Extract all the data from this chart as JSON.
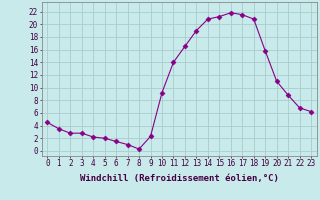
{
  "x": [
    0,
    1,
    2,
    3,
    4,
    5,
    6,
    7,
    8,
    9,
    10,
    11,
    12,
    13,
    14,
    15,
    16,
    17,
    18,
    19,
    20,
    21,
    22,
    23
  ],
  "y": [
    4.5,
    3.5,
    2.8,
    2.8,
    2.2,
    2.0,
    1.5,
    1.0,
    0.3,
    2.3,
    9.2,
    14.0,
    16.5,
    19.0,
    20.8,
    21.2,
    21.8,
    21.5,
    20.8,
    15.8,
    11.0,
    8.8,
    6.8,
    6.2
  ],
  "line_color": "#880088",
  "marker": "D",
  "marker_size": 2.5,
  "bg_color": "#c8eaea",
  "grid_color": "#aacccc",
  "xlabel": "Windchill (Refroidissement éolien,°C)",
  "xlabel_fontsize": 6.5,
  "ylabel_ticks": [
    0,
    2,
    4,
    6,
    8,
    10,
    12,
    14,
    16,
    18,
    20,
    22
  ],
  "xlim": [
    -0.5,
    23.5
  ],
  "ylim": [
    -0.8,
    23.5
  ],
  "xtick_labels": [
    "0",
    "1",
    "2",
    "3",
    "4",
    "5",
    "6",
    "7",
    "8",
    "9",
    "10",
    "11",
    "12",
    "13",
    "14",
    "15",
    "16",
    "17",
    "18",
    "19",
    "20",
    "21",
    "22",
    "23"
  ],
  "tick_fontsize": 5.5,
  "axis_label_color": "#440044",
  "spine_color": "#888888",
  "label_color": "#440044"
}
